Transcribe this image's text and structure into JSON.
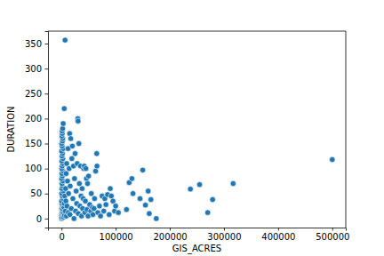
{
  "chart_data": {
    "type": "scatter",
    "x_label": "GIS_ACRES",
    "y_label": "DURATION",
    "x": [
      0,
      500,
      1000,
      200,
      1500,
      300,
      2000,
      800,
      100,
      2500,
      1200,
      400,
      3000,
      600,
      1800,
      900,
      2200,
      100,
      1400,
      700,
      2600,
      300,
      1100,
      1900,
      500,
      2300,
      800,
      1600,
      200,
      2800,
      1000,
      400,
      1700,
      2100,
      600,
      1300,
      1000,
      2000,
      3000,
      5000,
      6500,
      200,
      900,
      1600,
      2400,
      3500,
      4000,
      4500,
      5000,
      5500,
      6000,
      7000,
      7500,
      8000,
      8500,
      9000,
      9500,
      10000,
      11000,
      12000,
      12500,
      13000,
      14000,
      15000,
      15500,
      16000,
      17000,
      18000,
      19000,
      20000,
      21000,
      22000,
      23000,
      24000,
      25000,
      26000,
      27000,
      28000,
      29000,
      30000,
      30500,
      31000,
      32000,
      33000,
      34000,
      35000,
      36000,
      37000,
      38000,
      39000,
      40000,
      41000,
      42000,
      43000,
      44000,
      45000,
      46000,
      47000,
      48000,
      49000,
      50000,
      52000,
      54000,
      55000,
      57000,
      58000,
      60000,
      61000,
      63000,
      65000,
      65500,
      67000,
      70000,
      72000,
      75000,
      78000,
      80000,
      82000,
      85000,
      88000,
      90000,
      92000,
      95000,
      98000,
      100000,
      105000,
      120000,
      125000,
      130000,
      132000,
      145000,
      150000,
      155000,
      160000,
      162000,
      165000,
      175000,
      238000,
      255000,
      270000,
      279000,
      317000,
      500000
    ],
    "values": [
      0,
      2,
      5,
      10,
      15,
      20,
      25,
      30,
      35,
      40,
      45,
      50,
      55,
      60,
      65,
      70,
      75,
      80,
      85,
      90,
      95,
      100,
      105,
      110,
      115,
      120,
      125,
      130,
      135,
      140,
      145,
      150,
      155,
      160,
      165,
      170,
      175,
      180,
      190,
      220,
      357,
      3,
      8,
      12,
      18,
      3,
      10,
      22,
      30,
      6,
      45,
      15,
      60,
      35,
      90,
      5,
      110,
      25,
      75,
      140,
      12,
      50,
      100,
      170,
      8,
      65,
      160,
      20,
      120,
      145,
      40,
      105,
      0,
      80,
      130,
      15,
      55,
      30,
      110,
      200,
      195,
      10,
      150,
      70,
      25,
      105,
      45,
      5,
      60,
      20,
      40,
      100,
      105,
      12,
      35,
      100,
      80,
      18,
      70,
      5,
      85,
      28,
      15,
      50,
      22,
      8,
      20,
      40,
      95,
      130,
      105,
      12,
      25,
      5,
      45,
      15,
      40,
      28,
      48,
      8,
      60,
      45,
      35,
      15,
      25,
      12,
      18,
      72,
      80,
      50,
      40,
      97,
      27,
      55,
      10,
      38,
      0,
      59,
      68,
      12,
      38,
      70,
      118
    ],
    "color": "#1f77b4",
    "marker": "circle",
    "xlim": [
      -25000,
      525000
    ],
    "xticks": [
      0,
      100000,
      200000,
      300000,
      400000,
      500000
    ],
    "ylim": [
      -18,
      375
    ],
    "yticks": [
      0,
      50,
      100,
      150,
      200,
      250,
      300,
      350
    ]
  }
}
